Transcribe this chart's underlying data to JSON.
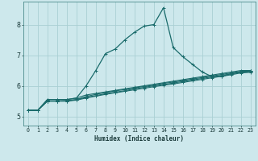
{
  "xlabel": "Humidex (Indice chaleur)",
  "ylabel": "",
  "xlim": [
    -0.5,
    23.5
  ],
  "ylim": [
    4.7,
    8.75
  ],
  "yticks": [
    5,
    6,
    7,
    8
  ],
  "xticks": [
    0,
    1,
    2,
    3,
    4,
    5,
    6,
    7,
    8,
    9,
    10,
    11,
    12,
    13,
    14,
    15,
    16,
    17,
    18,
    19,
    20,
    21,
    22,
    23
  ],
  "bg_color": "#cde8ec",
  "grid_color": "#aacfd4",
  "line_color": "#1a6b6b",
  "lines": [
    {
      "x": [
        0,
        1,
        2,
        3,
        4,
        5,
        6,
        7,
        8,
        9,
        10,
        11,
        12,
        13,
        14,
        15,
        16,
        17,
        18,
        19,
        20,
        21,
        22,
        23
      ],
      "y": [
        5.2,
        5.2,
        5.55,
        5.55,
        5.55,
        5.6,
        6.0,
        6.5,
        7.05,
        7.2,
        7.5,
        7.75,
        7.95,
        8.0,
        8.55,
        7.25,
        6.95,
        6.7,
        6.45,
        6.3,
        6.3,
        6.4,
        6.45,
        6.5
      ]
    },
    {
      "x": [
        0,
        1,
        2,
        3,
        4,
        5,
        6,
        7,
        8,
        9,
        10,
        11,
        12,
        13,
        14,
        15,
        16,
        17,
        18,
        19,
        20,
        21,
        22,
        23
      ],
      "y": [
        5.2,
        5.2,
        5.55,
        5.55,
        5.55,
        5.6,
        5.7,
        5.75,
        5.8,
        5.85,
        5.9,
        5.95,
        6.0,
        6.05,
        6.1,
        6.15,
        6.2,
        6.25,
        6.3,
        6.35,
        6.4,
        6.45,
        6.5,
        6.5
      ]
    },
    {
      "x": [
        0,
        1,
        2,
        3,
        4,
        5,
        6,
        7,
        8,
        9,
        10,
        11,
        12,
        13,
        14,
        15,
        16,
        17,
        18,
        19,
        20,
        21,
        22,
        23
      ],
      "y": [
        5.2,
        5.2,
        5.5,
        5.5,
        5.5,
        5.55,
        5.65,
        5.72,
        5.78,
        5.83,
        5.88,
        5.93,
        5.98,
        6.02,
        6.08,
        6.12,
        6.17,
        6.22,
        6.27,
        6.32,
        6.37,
        6.42,
        6.47,
        6.48
      ]
    },
    {
      "x": [
        0,
        1,
        2,
        3,
        4,
        5,
        6,
        7,
        8,
        9,
        10,
        11,
        12,
        13,
        14,
        15,
        16,
        17,
        18,
        19,
        20,
        21,
        22,
        23
      ],
      "y": [
        5.2,
        5.2,
        5.5,
        5.5,
        5.52,
        5.55,
        5.62,
        5.68,
        5.74,
        5.79,
        5.84,
        5.9,
        5.95,
        6.0,
        6.04,
        6.09,
        6.14,
        6.19,
        6.24,
        6.29,
        6.34,
        6.39,
        6.44,
        6.46
      ]
    },
    {
      "x": [
        0,
        1,
        2,
        3,
        4,
        5,
        6,
        7,
        8,
        9,
        10,
        11,
        12,
        13,
        14,
        15,
        16,
        17,
        18,
        19,
        20,
        21,
        22,
        23
      ],
      "y": [
        5.2,
        5.2,
        5.5,
        5.5,
        5.5,
        5.53,
        5.6,
        5.66,
        5.72,
        5.77,
        5.82,
        5.87,
        5.92,
        5.97,
        6.02,
        6.06,
        6.11,
        6.16,
        6.21,
        6.26,
        6.31,
        6.36,
        6.42,
        6.44
      ]
    }
  ]
}
